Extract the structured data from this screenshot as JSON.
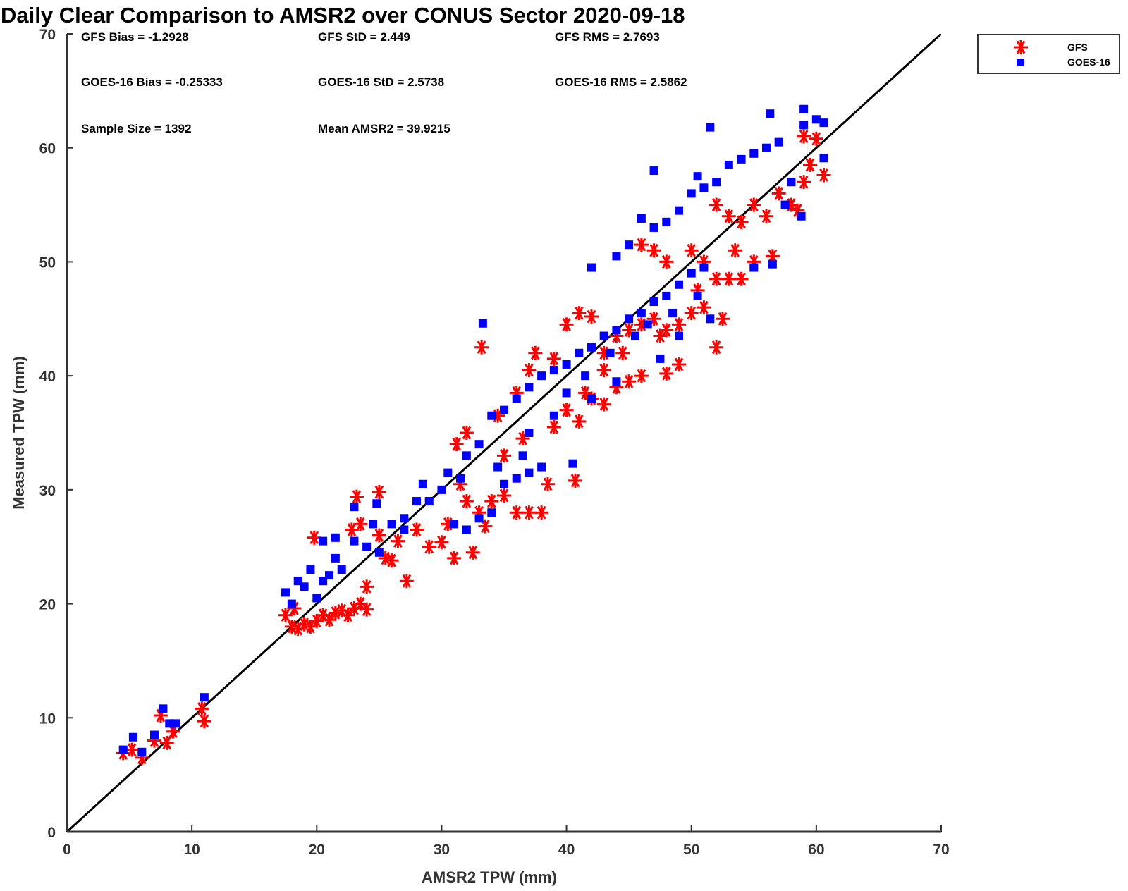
{
  "chart_data": {
    "type": "scatter",
    "title": "Daily Clear Comparison to AMSR2 over CONUS Sector 2020-09-18",
    "xlabel": "AMSR2 TPW (mm)",
    "ylabel": "Measured TPW (mm)",
    "xlim": [
      0,
      70
    ],
    "ylim": [
      0,
      70
    ],
    "xticks": [
      0,
      10,
      20,
      30,
      40,
      50,
      60,
      70
    ],
    "yticks": [
      0,
      10,
      20,
      30,
      40,
      50,
      60,
      70
    ],
    "grid": false,
    "legend_position": "outside-top-right",
    "reference_line": {
      "from": [
        0,
        0
      ],
      "to": [
        70,
        70
      ],
      "color": "#000000"
    },
    "stats": [
      [
        "GFS Bias = -1.2928",
        "GFS StD = 2.449",
        "GFS RMS = 2.7693"
      ],
      [
        "GOES-16 Bias = -0.25333",
        "GOES-16 StD = 2.5738",
        "GOES-16 RMS = 2.5862"
      ],
      [
        "Sample Size = 1392",
        "Mean AMSR2 = 39.9215"
      ]
    ],
    "series": [
      {
        "name": "GFS",
        "marker": "asterisk",
        "color": "#ff0000",
        "points": [
          [
            4.5,
            6.9
          ],
          [
            5.2,
            7.2
          ],
          [
            6.0,
            6.5
          ],
          [
            7.0,
            8.0
          ],
          [
            7.5,
            10.2
          ],
          [
            8.0,
            7.8
          ],
          [
            8.5,
            8.8
          ],
          [
            11.0,
            9.7
          ],
          [
            10.8,
            10.8
          ],
          [
            17.5,
            19.0
          ],
          [
            18.0,
            18.0
          ],
          [
            18.5,
            17.8
          ],
          [
            19.0,
            18.2
          ],
          [
            19.5,
            18.0
          ],
          [
            20.0,
            18.5
          ],
          [
            20.5,
            19.0
          ],
          [
            21.0,
            18.6
          ],
          [
            21.5,
            19.2
          ],
          [
            22.0,
            19.4
          ],
          [
            22.5,
            19.0
          ],
          [
            23.0,
            19.6
          ],
          [
            23.5,
            20.0
          ],
          [
            24.0,
            19.5
          ],
          [
            18.2,
            19.6
          ],
          [
            19.8,
            25.8
          ],
          [
            23.2,
            29.4
          ],
          [
            25.0,
            29.8
          ],
          [
            22.8,
            26.5
          ],
          [
            23.5,
            27.0
          ],
          [
            24.0,
            21.5
          ],
          [
            25.5,
            24.0
          ],
          [
            26.0,
            23.8
          ],
          [
            27.2,
            22.0
          ],
          [
            29.0,
            25.0
          ],
          [
            30.0,
            25.4
          ],
          [
            31.0,
            24.0
          ],
          [
            32.5,
            24.5
          ],
          [
            30.5,
            27.0
          ],
          [
            32.0,
            29.0
          ],
          [
            33.5,
            26.8
          ],
          [
            31.5,
            30.5
          ],
          [
            33.0,
            28.0
          ],
          [
            34.0,
            29.0
          ],
          [
            35.0,
            29.5
          ],
          [
            36.0,
            28.0
          ],
          [
            37.0,
            28.0
          ],
          [
            38.0,
            28.0
          ],
          [
            38.5,
            30.5
          ],
          [
            40.7,
            30.8
          ],
          [
            31.2,
            34.0
          ],
          [
            32.0,
            35.0
          ],
          [
            34.5,
            36.5
          ],
          [
            36.0,
            38.5
          ],
          [
            37.0,
            40.5
          ],
          [
            37.5,
            42.0
          ],
          [
            39.0,
            41.5
          ],
          [
            40.0,
            37.0
          ],
          [
            41.0,
            36.0
          ],
          [
            42.0,
            38.0
          ],
          [
            43.0,
            37.5
          ],
          [
            44.0,
            39.0
          ],
          [
            45.0,
            39.5
          ],
          [
            46.0,
            40.0
          ],
          [
            48.0,
            40.2
          ],
          [
            49.0,
            41.0
          ],
          [
            40.0,
            44.5
          ],
          [
            41.0,
            45.5
          ],
          [
            42.0,
            45.2
          ],
          [
            43.0,
            42.0
          ],
          [
            44.0,
            43.5
          ],
          [
            45.0,
            44.0
          ],
          [
            46.0,
            44.5
          ],
          [
            47.0,
            45.0
          ],
          [
            48.0,
            44.0
          ],
          [
            49.0,
            44.5
          ],
          [
            50.0,
            45.5
          ],
          [
            51.0,
            46.0
          ],
          [
            52.0,
            42.5
          ],
          [
            52.5,
            45.0
          ],
          [
            33.2,
            42.5
          ],
          [
            46.0,
            51.5
          ],
          [
            47.0,
            51.0
          ],
          [
            48.0,
            50.0
          ],
          [
            50.0,
            51.0
          ],
          [
            51.0,
            50.0
          ],
          [
            52.0,
            48.5
          ],
          [
            53.0,
            48.5
          ],
          [
            54.0,
            48.5
          ],
          [
            55.0,
            50.0
          ],
          [
            56.5,
            50.5
          ],
          [
            52.0,
            55.0
          ],
          [
            53.0,
            54.0
          ],
          [
            54.0,
            53.5
          ],
          [
            55.0,
            55.0
          ],
          [
            56.0,
            54.0
          ],
          [
            57.0,
            56.0
          ],
          [
            58.0,
            55.0
          ],
          [
            59.0,
            57.0
          ],
          [
            59.5,
            58.5
          ],
          [
            60.0,
            60.8
          ],
          [
            60.6,
            57.6
          ],
          [
            59.0,
            61.0
          ],
          [
            58.5,
            54.5
          ],
          [
            25.0,
            26.0
          ],
          [
            26.5,
            25.5
          ],
          [
            28.0,
            26.5
          ],
          [
            35.0,
            33.0
          ],
          [
            36.5,
            34.5
          ],
          [
            39.0,
            35.5
          ],
          [
            41.5,
            38.5
          ],
          [
            43.0,
            40.5
          ],
          [
            44.5,
            42.0
          ],
          [
            47.5,
            43.5
          ],
          [
            50.5,
            47.5
          ],
          [
            53.5,
            51.0
          ]
        ]
      },
      {
        "name": "GOES-16",
        "marker": "square",
        "color": "#0000ff",
        "points": [
          [
            4.5,
            7.2
          ],
          [
            5.3,
            8.3
          ],
          [
            6.0,
            7.0
          ],
          [
            7.0,
            8.5
          ],
          [
            7.7,
            10.8
          ],
          [
            8.2,
            9.5
          ],
          [
            8.7,
            9.5
          ],
          [
            11.0,
            11.8
          ],
          [
            17.5,
            21.0
          ],
          [
            18.0,
            20.0
          ],
          [
            18.5,
            22.0
          ],
          [
            19.0,
            21.5
          ],
          [
            19.5,
            23.0
          ],
          [
            20.0,
            20.5
          ],
          [
            20.5,
            22.0
          ],
          [
            21.0,
            22.5
          ],
          [
            21.5,
            24.0
          ],
          [
            22.0,
            23.0
          ],
          [
            23.0,
            25.5
          ],
          [
            24.0,
            25.0
          ],
          [
            24.5,
            27.0
          ],
          [
            20.5,
            25.5
          ],
          [
            21.5,
            25.8
          ],
          [
            23.0,
            28.5
          ],
          [
            24.8,
            28.8
          ],
          [
            26.0,
            27.0
          ],
          [
            27.0,
            27.5
          ],
          [
            28.0,
            29.0
          ],
          [
            28.5,
            30.5
          ],
          [
            30.0,
            30.0
          ],
          [
            30.5,
            31.5
          ],
          [
            32.0,
            33.0
          ],
          [
            33.0,
            34.0
          ],
          [
            33.3,
            44.6
          ],
          [
            31.0,
            27.0
          ],
          [
            32.0,
            26.5
          ],
          [
            33.0,
            27.5
          ],
          [
            34.0,
            28.0
          ],
          [
            35.0,
            30.5
          ],
          [
            36.0,
            31.0
          ],
          [
            37.0,
            31.5
          ],
          [
            38.0,
            32.0
          ],
          [
            40.5,
            32.3
          ],
          [
            34.0,
            36.5
          ],
          [
            35.0,
            37.0
          ],
          [
            36.0,
            38.0
          ],
          [
            37.0,
            39.0
          ],
          [
            38.0,
            40.0
          ],
          [
            39.0,
            40.5
          ],
          [
            40.0,
            41.0
          ],
          [
            41.0,
            42.0
          ],
          [
            42.0,
            42.5
          ],
          [
            43.0,
            43.5
          ],
          [
            44.0,
            44.0
          ],
          [
            45.0,
            45.0
          ],
          [
            46.0,
            45.5
          ],
          [
            47.0,
            46.5
          ],
          [
            48.0,
            47.0
          ],
          [
            49.0,
            48.0
          ],
          [
            50.0,
            49.0
          ],
          [
            51.0,
            49.5
          ],
          [
            42.0,
            49.5
          ],
          [
            44.0,
            50.5
          ],
          [
            45.0,
            51.5
          ],
          [
            46.0,
            53.8
          ],
          [
            47.0,
            53.0
          ],
          [
            48.0,
            53.5
          ],
          [
            49.0,
            54.5
          ],
          [
            50.0,
            56.0
          ],
          [
            51.0,
            56.5
          ],
          [
            52.0,
            57.0
          ],
          [
            53.0,
            58.5
          ],
          [
            54.0,
            59.0
          ],
          [
            55.0,
            59.5
          ],
          [
            56.0,
            60.0
          ],
          [
            57.0,
            60.5
          ],
          [
            47.0,
            58.0
          ],
          [
            50.5,
            57.5
          ],
          [
            51.5,
            61.8
          ],
          [
            56.3,
            63.0
          ],
          [
            59.0,
            63.4
          ],
          [
            59.0,
            62.0
          ],
          [
            60.0,
            62.5
          ],
          [
            60.6,
            62.2
          ],
          [
            60.6,
            59.1
          ],
          [
            58.8,
            54.0
          ],
          [
            56.5,
            49.8
          ],
          [
            55.0,
            49.5
          ],
          [
            57.5,
            55.0
          ],
          [
            58.0,
            57.0
          ],
          [
            40.0,
            38.5
          ],
          [
            41.5,
            40.0
          ],
          [
            43.5,
            42.0
          ],
          [
            45.5,
            43.5
          ],
          [
            46.5,
            44.5
          ],
          [
            48.5,
            45.5
          ],
          [
            50.5,
            47.0
          ],
          [
            51.5,
            45.0
          ],
          [
            49.0,
            43.5
          ],
          [
            47.5,
            41.5
          ],
          [
            44.0,
            39.5
          ],
          [
            42.0,
            38.0
          ],
          [
            39.0,
            36.5
          ],
          [
            37.0,
            35.0
          ],
          [
            36.5,
            33.0
          ],
          [
            34.5,
            32.0
          ],
          [
            31.5,
            31.0
          ],
          [
            29.0,
            29.0
          ],
          [
            27.0,
            26.5
          ],
          [
            25.0,
            24.5
          ]
        ]
      }
    ]
  }
}
